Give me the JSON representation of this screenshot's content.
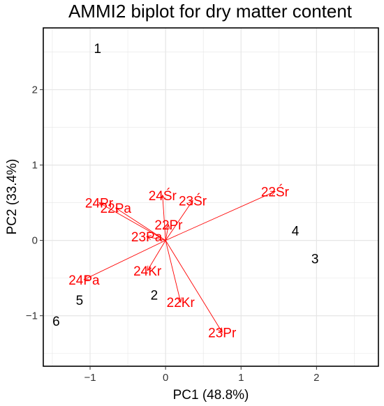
{
  "chart_data": {
    "type": "scatter",
    "title": "AMMI2 biplot for dry matter content",
    "xlabel": "PC1 (48.8%)",
    "ylabel": "PC2 (33.4%)",
    "xlim": [
      -1.62,
      2.82
    ],
    "ylim": [
      -1.67,
      2.82
    ],
    "x_ticks": [
      -1,
      0,
      1,
      2
    ],
    "y_ticks": [
      -1,
      0,
      1,
      2
    ],
    "x_tick_labels": [
      "−1",
      "0",
      "1",
      "2"
    ],
    "y_tick_labels": [
      "−1",
      "0",
      "1",
      "2"
    ],
    "grid": true,
    "genotypes": [
      {
        "label": "1",
        "x": -0.9,
        "y": 2.55
      },
      {
        "label": "2",
        "x": -0.15,
        "y": -0.72
      },
      {
        "label": "3",
        "x": 1.98,
        "y": -0.24
      },
      {
        "label": "4",
        "x": 1.72,
        "y": 0.13
      },
      {
        "label": "5",
        "x": -1.14,
        "y": -0.79
      },
      {
        "label": "6",
        "x": -1.45,
        "y": -1.07
      }
    ],
    "environments": [
      {
        "label": "22Śr",
        "x": 1.45,
        "y": 0.65
      },
      {
        "label": "23Pr",
        "x": 0.75,
        "y": -1.22
      },
      {
        "label": "22Kr",
        "x": 0.2,
        "y": -0.82
      },
      {
        "label": "24Pa",
        "x": -1.08,
        "y": -0.52
      },
      {
        "label": "24Kr",
        "x": -0.24,
        "y": -0.4
      },
      {
        "label": "24Śr",
        "x": -0.04,
        "y": 0.6
      },
      {
        "label": "23Śr",
        "x": 0.36,
        "y": 0.53
      },
      {
        "label": "24Pr",
        "x": -0.88,
        "y": 0.5
      },
      {
        "label": "22Pa",
        "x": -0.66,
        "y": 0.43
      },
      {
        "label": "22Pr",
        "x": 0.04,
        "y": 0.21
      },
      {
        "label": "23Pa",
        "x": -0.25,
        "y": 0.05
      }
    ],
    "colors": {
      "genotype": "#000000",
      "environment": "#ff0000",
      "grid": "#e6e6e6",
      "panel_border": "#000000"
    }
  }
}
